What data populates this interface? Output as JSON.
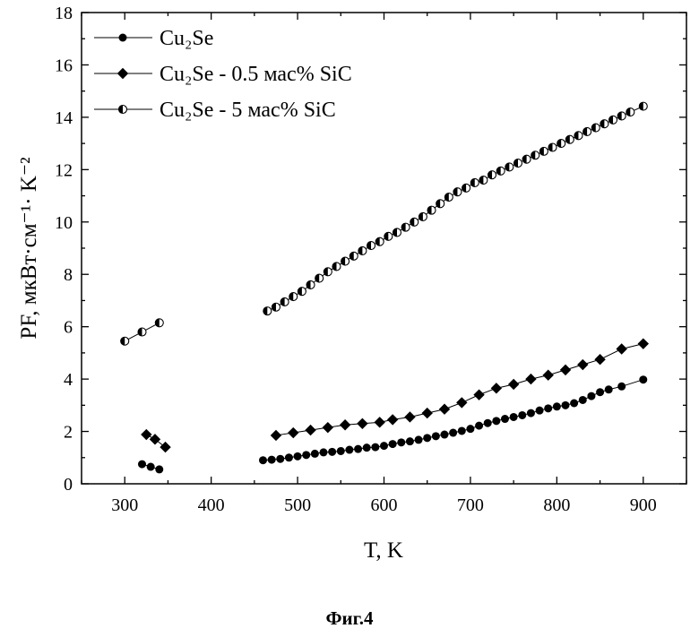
{
  "caption": "Фиг.4",
  "chart_data": {
    "type": "scatter",
    "xlabel": "T, K",
    "ylabel": "PF, мкВт·см⁻¹· K⁻²",
    "xlim": [
      250,
      950
    ],
    "ylim": [
      0,
      18
    ],
    "x_ticks": [
      300,
      400,
      500,
      600,
      700,
      800,
      900
    ],
    "y_ticks": [
      0,
      2,
      4,
      6,
      8,
      10,
      12,
      14,
      16,
      18
    ],
    "grid": false,
    "legend_position": "top-left",
    "series": [
      {
        "name": "Cu₂Se",
        "marker": "filled-circle",
        "segments": [
          {
            "x": [
              320,
              330,
              340
            ],
            "y": [
              0.75,
              0.65,
              0.55
            ]
          },
          {
            "x": [
              460,
              470,
              480,
              490,
              500,
              510,
              520,
              530,
              540,
              550,
              560,
              570,
              580,
              590,
              600,
              610,
              620,
              630,
              640,
              650,
              660,
              670,
              680,
              690,
              700,
              710,
              720,
              730,
              740,
              750,
              760,
              770,
              780,
              790,
              800,
              810,
              820,
              830,
              840,
              850,
              860,
              875,
              900
            ],
            "y": [
              0.9,
              0.92,
              0.95,
              1.0,
              1.05,
              1.1,
              1.15,
              1.2,
              1.22,
              1.25,
              1.3,
              1.33,
              1.38,
              1.4,
              1.45,
              1.52,
              1.58,
              1.62,
              1.68,
              1.75,
              1.82,
              1.88,
              1.95,
              2.02,
              2.1,
              2.22,
              2.32,
              2.4,
              2.48,
              2.55,
              2.62,
              2.7,
              2.8,
              2.88,
              2.95,
              3.0,
              3.08,
              3.2,
              3.35,
              3.5,
              3.6,
              3.72,
              3.98
            ]
          }
        ]
      },
      {
        "name": "Cu₂Se - 0.5 мас% SiC",
        "marker": "filled-diamond",
        "segments": [
          {
            "x": [
              325,
              335,
              347
            ],
            "y": [
              1.88,
              1.7,
              1.4
            ]
          },
          {
            "x": [
              475,
              495,
              515,
              535,
              555,
              575,
              595,
              610,
              630,
              650,
              670,
              690,
              710,
              730,
              750,
              770,
              790,
              810,
              830,
              850,
              875,
              900
            ],
            "y": [
              1.85,
              1.95,
              2.05,
              2.15,
              2.25,
              2.3,
              2.35,
              2.45,
              2.55,
              2.7,
              2.85,
              3.1,
              3.4,
              3.65,
              3.8,
              4.0,
              4.15,
              4.35,
              4.55,
              4.75,
              5.15,
              5.35
            ]
          }
        ]
      },
      {
        "name": "Cu₂Se - 5 мас% SiC",
        "marker": "half-filled-circle",
        "segments": [
          {
            "x": [
              300,
              320,
              340
            ],
            "y": [
              5.45,
              5.8,
              6.15
            ]
          },
          {
            "x": [
              465,
              475,
              485,
              495,
              505,
              515,
              525,
              535,
              545,
              555,
              565,
              575,
              585,
              595,
              605,
              615,
              625,
              635,
              645,
              655,
              665,
              675,
              685,
              695,
              705,
              715,
              725,
              735,
              745,
              755,
              765,
              775,
              785,
              795,
              805,
              815,
              825,
              835,
              845,
              855,
              865,
              875,
              885,
              900
            ],
            "y": [
              6.6,
              6.75,
              6.95,
              7.15,
              7.35,
              7.6,
              7.85,
              8.1,
              8.3,
              8.5,
              8.7,
              8.9,
              9.1,
              9.25,
              9.45,
              9.6,
              9.8,
              10.0,
              10.2,
              10.45,
              10.7,
              10.95,
              11.15,
              11.3,
              11.5,
              11.6,
              11.8,
              11.95,
              12.1,
              12.25,
              12.4,
              12.55,
              12.7,
              12.85,
              13.0,
              13.15,
              13.3,
              13.45,
              13.6,
              13.75,
              13.9,
              14.05,
              14.2,
              14.42
            ]
          }
        ]
      }
    ]
  }
}
